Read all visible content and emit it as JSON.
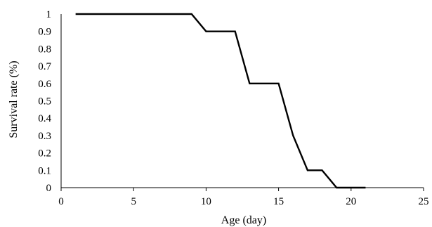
{
  "chart_data": {
    "type": "line",
    "title": "",
    "xlabel": "Age (day)",
    "ylabel": "Survival rate (%)",
    "xlim": [
      0,
      25
    ],
    "ylim": [
      0,
      1
    ],
    "x_ticks": [
      0,
      5,
      10,
      15,
      20,
      25
    ],
    "y_ticks": [
      0,
      0.1,
      0.2,
      0.3,
      0.4,
      0.5,
      0.6,
      0.7,
      0.8,
      0.9,
      1
    ],
    "x_tick_labels": [
      "0",
      "5",
      "10",
      "15",
      "20",
      "25"
    ],
    "y_tick_labels": [
      "0",
      "0.1",
      "0.2",
      "0.3",
      "0.4",
      "0.5",
      "0.6",
      "0.7",
      "0.8",
      "0.9",
      "1"
    ],
    "grid": false,
    "legend": "none",
    "series": [
      {
        "color": "#000000",
        "x": [
          1,
          2,
          3,
          4,
          5,
          6,
          7,
          8,
          9,
          10,
          11,
          12,
          13,
          14,
          15,
          16,
          17,
          18,
          19,
          20,
          21
        ],
        "y": [
          1,
          1,
          1,
          1,
          1,
          1,
          1,
          1,
          1,
          0.9,
          0.9,
          0.9,
          0.6,
          0.6,
          0.6,
          0.3,
          0.1,
          0.1,
          0,
          0,
          0
        ]
      }
    ]
  }
}
